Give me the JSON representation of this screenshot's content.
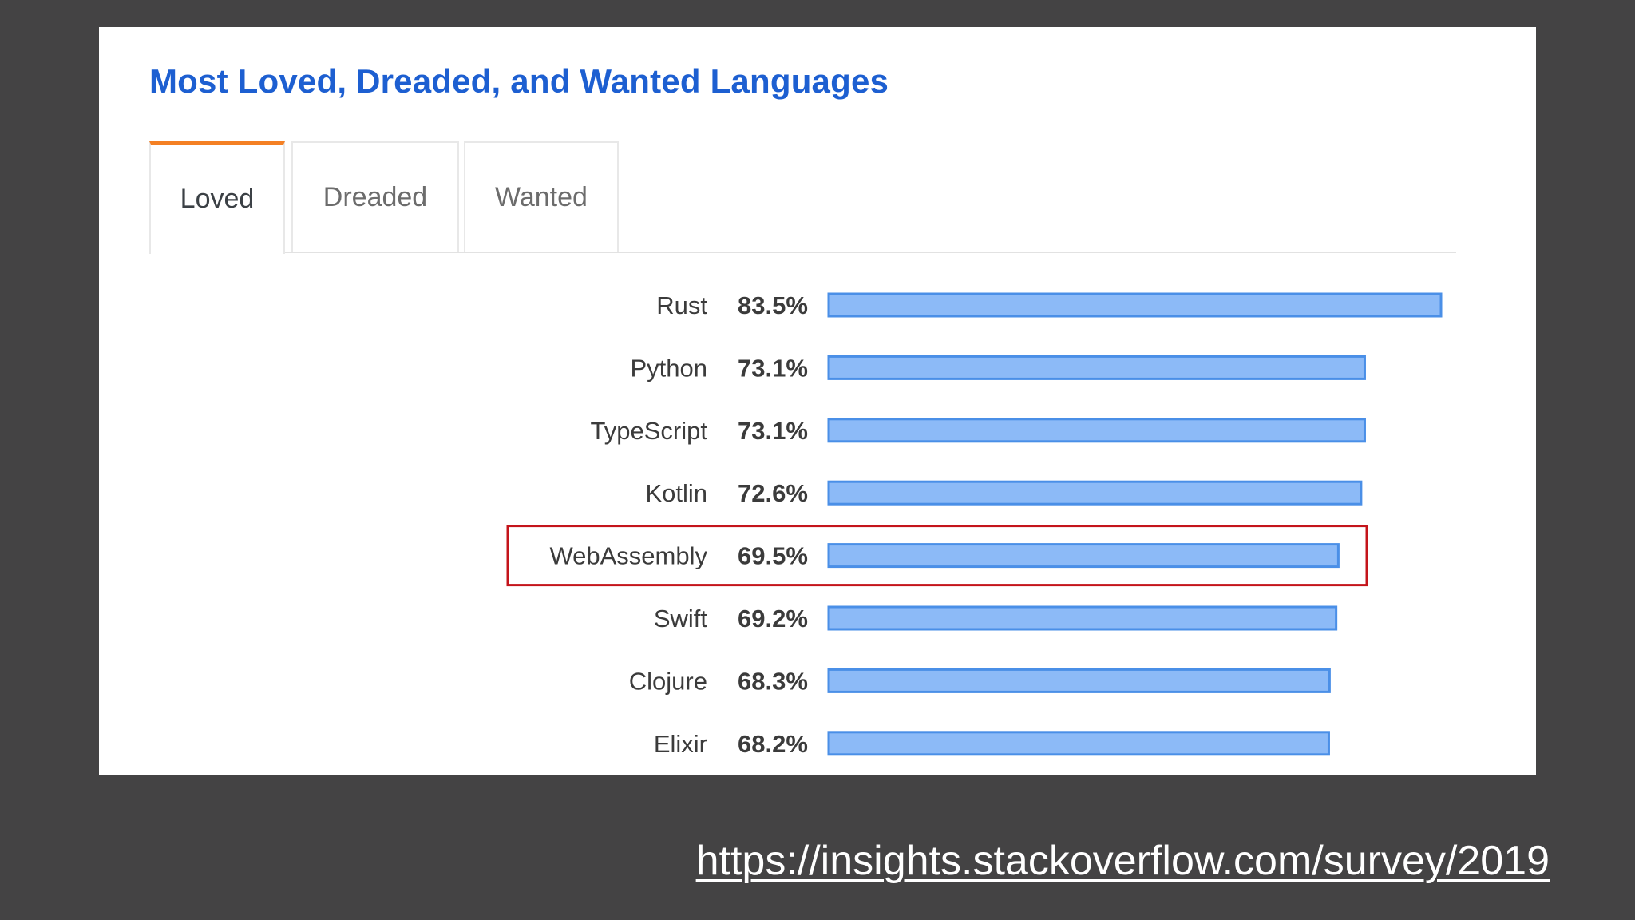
{
  "chart_data": {
    "type": "bar",
    "orientation": "horizontal",
    "title": "Most Loved, Dreaded, and Wanted Languages",
    "tabs": [
      "Loved",
      "Dreaded",
      "Wanted"
    ],
    "active_tab": "Loved",
    "categories": [
      "Rust",
      "Python",
      "TypeScript",
      "Kotlin",
      "WebAssembly",
      "Swift",
      "Clojure",
      "Elixir"
    ],
    "values": [
      83.5,
      73.1,
      73.1,
      72.6,
      69.5,
      69.2,
      68.3,
      68.2
    ],
    "value_labels": [
      "83.5%",
      "73.1%",
      "73.1%",
      "72.6%",
      "69.5%",
      "69.2%",
      "68.3%",
      "68.2%"
    ],
    "highlighted": "WebAssembly",
    "colors": {
      "bar_fill": "#8cbaf7",
      "bar_stroke": "#4a8fe7",
      "highlight": "#c4141b",
      "title": "#1d5fd1",
      "tab_active": "#f48024"
    }
  },
  "source_url": "https://insights.stackoverflow.com/survey/2019"
}
